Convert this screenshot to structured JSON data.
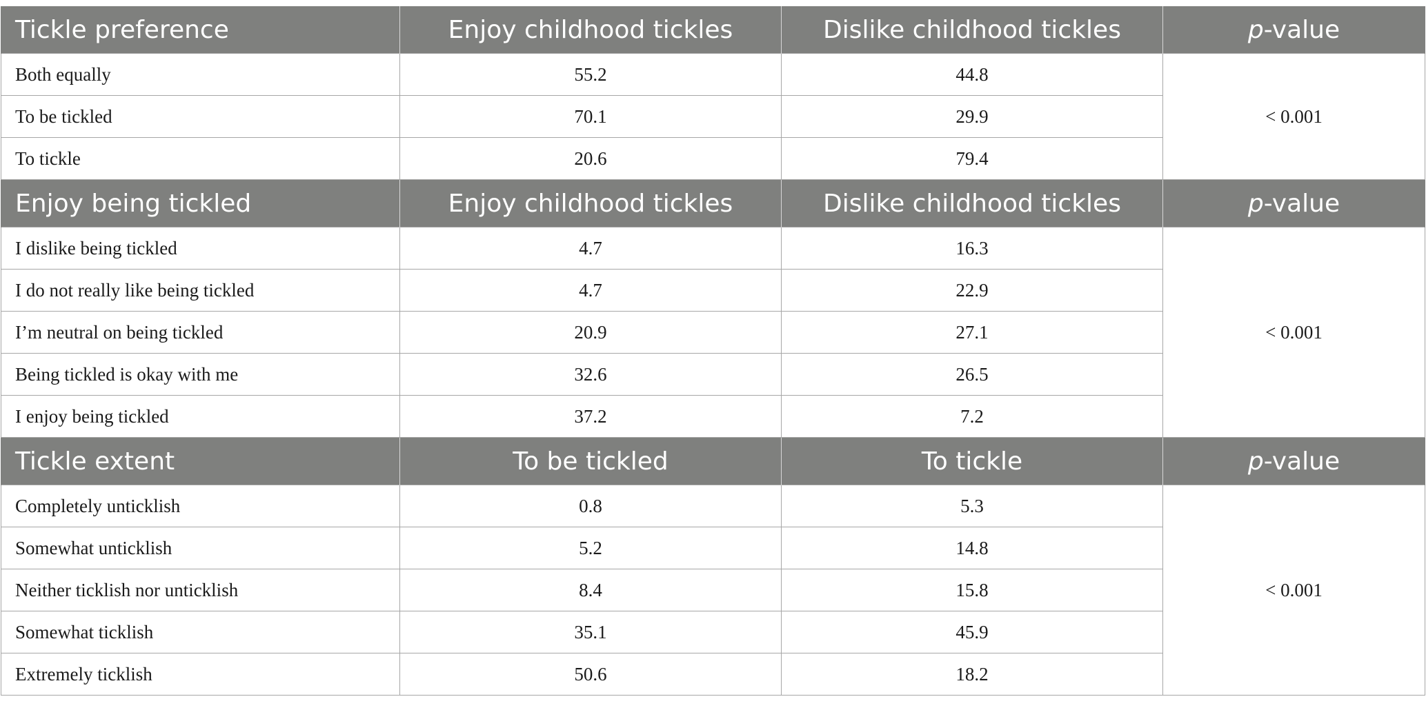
{
  "sections": [
    {
      "header": {
        "title": "Tickle preference",
        "col2": "Enjoy childhood tickles",
        "col3": "Dislike childhood tickles",
        "col4_italic": "p",
        "col4_rest": "-value"
      },
      "p_value": "< 0.001",
      "rows": [
        {
          "label": "Both equally",
          "v1": "55.2",
          "v2": "44.8"
        },
        {
          "label": "To be tickled",
          "v1": "70.1",
          "v2": "29.9"
        },
        {
          "label": "To tickle",
          "v1": "20.6",
          "v2": "79.4"
        }
      ]
    },
    {
      "header": {
        "title": "Enjoy being tickled",
        "col2": "Enjoy childhood tickles",
        "col3": "Dislike childhood tickles",
        "col4_italic": "p",
        "col4_rest": "-value"
      },
      "p_value": "< 0.001",
      "rows": [
        {
          "label": "I dislike being tickled",
          "v1": "4.7",
          "v2": "16.3"
        },
        {
          "label": "I do not really like being tickled",
          "v1": "4.7",
          "v2": "22.9"
        },
        {
          "label": "I’m neutral on being tickled",
          "v1": "20.9",
          "v2": "27.1"
        },
        {
          "label": "Being tickled is okay with me",
          "v1": "32.6",
          "v2": "26.5"
        },
        {
          "label": "I enjoy being tickled",
          "v1": "37.2",
          "v2": "7.2"
        }
      ]
    },
    {
      "header": {
        "title": "Tickle extent",
        "col2": "To be tickled",
        "col3": "To tickle",
        "col4_italic": "p",
        "col4_rest": "-value"
      },
      "p_value": "< 0.001",
      "rows": [
        {
          "label": "Completely unticklish",
          "v1": "0.8",
          "v2": "5.3"
        },
        {
          "label": "Somewhat unticklish",
          "v1": "5.2",
          "v2": "14.8"
        },
        {
          "label": "Neither ticklish nor unticklish",
          "v1": "8.4",
          "v2": "15.8"
        },
        {
          "label": "Somewhat ticklish",
          "v1": "35.1",
          "v2": "45.9"
        },
        {
          "label": "Extremely ticklish",
          "v1": "50.6",
          "v2": "18.2"
        }
      ]
    }
  ],
  "colors": {
    "header_bg": "#7f807e",
    "header_text": "#ffffff",
    "grid_line": "#a6a6a6"
  }
}
